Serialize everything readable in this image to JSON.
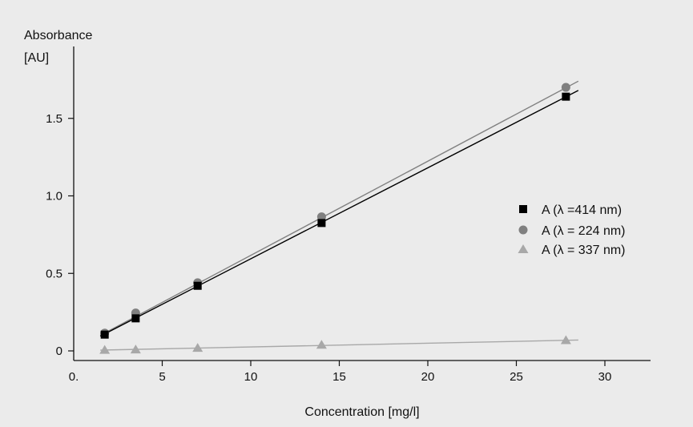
{
  "chart_data": {
    "type": "scatter",
    "title": "",
    "ylabel_line1": "Absorbance",
    "ylabel_line2": "[AU]",
    "xlabel": "Concentration [mg/l]",
    "xlim": [
      0,
      32
    ],
    "ylim": [
      -0.05,
      1.9
    ],
    "x_ticks": [
      0,
      5,
      10,
      15,
      20,
      25,
      30
    ],
    "x_tick_labels": [
      "0.",
      "5",
      "10",
      "15",
      "20",
      "25",
      "30"
    ],
    "y_ticks": [
      0,
      0.5,
      1.0,
      1.5
    ],
    "y_tick_labels": [
      "0",
      "0.5",
      "1.0",
      "1.5"
    ],
    "grid": false,
    "legend_position": "right",
    "series": [
      {
        "name": "A (λ =414 nm)",
        "marker": "square",
        "color": "#000000",
        "line_color": "#000000",
        "x": [
          1.75,
          3.5,
          7.0,
          14.0,
          27.8
        ],
        "y": [
          0.105,
          0.21,
          0.42,
          0.825,
          1.64
        ],
        "fit": [
          1.5,
          0.095,
          28.5,
          1.68
        ]
      },
      {
        "name": "A (λ = 224 nm)",
        "marker": "circle",
        "color": "#808080",
        "line_color": "#808080",
        "x": [
          1.75,
          3.5,
          7.0,
          14.0,
          27.8
        ],
        "y": [
          0.115,
          0.245,
          0.44,
          0.865,
          1.7
        ],
        "fit": [
          1.5,
          0.1,
          28.5,
          1.74
        ]
      },
      {
        "name": "A (λ = 337 nm)",
        "marker": "triangle",
        "color": "#a8a8a8",
        "line_color": "#a8a8a8",
        "x": [
          1.75,
          3.5,
          7.0,
          14.0,
          27.8
        ],
        "y": [
          0.007,
          0.01,
          0.02,
          0.04,
          0.07
        ],
        "fit": [
          1.5,
          0.005,
          28.5,
          0.07
        ]
      }
    ]
  }
}
